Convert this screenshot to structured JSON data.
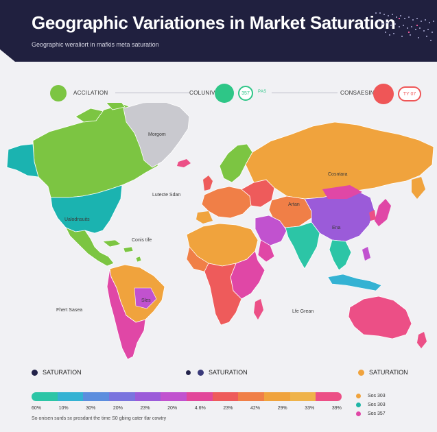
{
  "header": {
    "title": "Geographic Variationes in Market Saturation",
    "subtitle": "Geographic weraliort in mafkis meta saturation"
  },
  "top_legend": {
    "left_label": "ACCILATION",
    "center_label": "COLUNIVIT",
    "center_badge": "357",
    "center_tag": "PAS",
    "right_label": "CONSAESIN",
    "right_badge": "TY 07",
    "colors": {
      "green": "#7cc542",
      "teal": "#2ec687",
      "red": "#ef5657"
    }
  },
  "map_labels": {
    "greenland": "Morgom",
    "north_america": "Ualodnsuits",
    "atlantic": "Lutecte Sdan",
    "caribbean": "Conis tife",
    "south_pacific": "Fhert Sasea",
    "south_america": "Sles",
    "russia": "Cosntara",
    "mideast": "Artan",
    "china": "Ena",
    "indian_ocean": "Lfe Grean"
  },
  "bottom_legend": {
    "items": [
      {
        "label": "SATURATION",
        "color": "#23234a"
      },
      {
        "label": "SATURATION",
        "color": "#3a3a7a"
      },
      {
        "label": "SATURATION",
        "color": "#f0a33d"
      }
    ],
    "scale_colors": [
      "#2cc5a6",
      "#34b2d3",
      "#5c8ede",
      "#7a74de",
      "#9b5bd9",
      "#c152cf",
      "#e2479a",
      "#ee5b5b",
      "#f07f47",
      "#f0a33d",
      "#efb34a",
      "#ec4f86"
    ],
    "ticks": [
      "60%",
      "10%",
      "30%",
      "20%",
      "23%",
      "20%",
      "4.6%",
      "23%",
      "42%",
      "29%",
      "33%",
      "39%"
    ],
    "footnote": "So onisen surds sx prosdant the time S0 gbing cater tlar cowtry",
    "side": [
      {
        "label": "Sos 303",
        "color": "#f0a33d"
      },
      {
        "label": "Sos 303",
        "color": "#1fb5a6"
      },
      {
        "label": "Sos 357",
        "color": "#e047a6"
      }
    ]
  }
}
